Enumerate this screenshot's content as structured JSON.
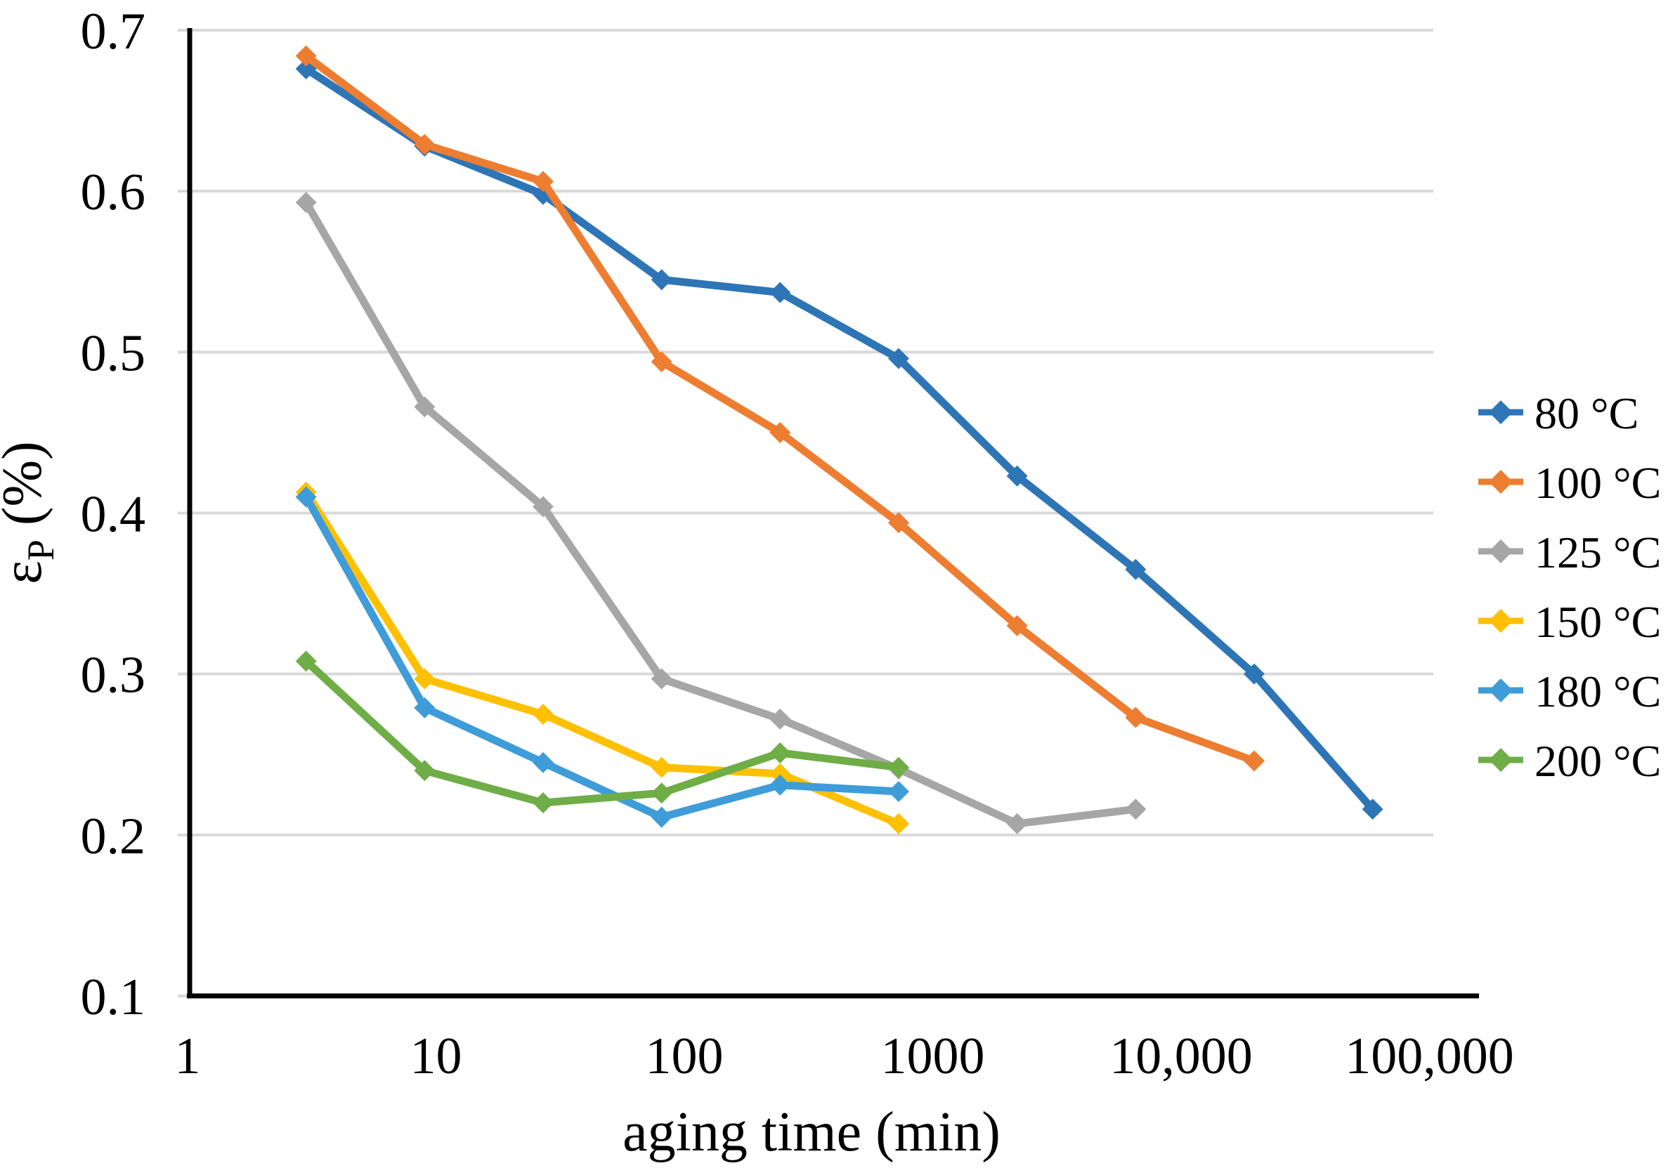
{
  "chart_data": {
    "type": "line",
    "title": "",
    "xlabel": "aging time (min)",
    "ylabel": "εP (%)",
    "ylabel_parts": {
      "symbol": "ε",
      "sub": "P",
      "rest": " (%)"
    },
    "x_scale": "log",
    "xlim": [
      1,
      100000
    ],
    "ylim": [
      0.1,
      0.7
    ],
    "grid": "horizontal",
    "legend_position": "right",
    "marker": "diamond",
    "x_ticks": [
      {
        "value": 1,
        "label": "1"
      },
      {
        "value": 10,
        "label": "10"
      },
      {
        "value": 100,
        "label": "100"
      },
      {
        "value": 1000,
        "label": "1000"
      },
      {
        "value": 10000,
        "label": "10,000"
      },
      {
        "value": 100000,
        "label": "100,000"
      }
    ],
    "y_ticks": [
      {
        "value": 0.1,
        "label": "0.1"
      },
      {
        "value": 0.2,
        "label": "0.2"
      },
      {
        "value": 0.3,
        "label": "0.3"
      },
      {
        "value": 0.4,
        "label": "0.4"
      },
      {
        "value": 0.5,
        "label": "0.5"
      },
      {
        "value": 0.6,
        "label": "0.6"
      },
      {
        "value": 0.7,
        "label": "0.7"
      }
    ],
    "series": [
      {
        "name": "80 °C",
        "color": "#2E75B6",
        "points": [
          [
            3,
            0.676
          ],
          [
            9,
            0.628
          ],
          [
            27,
            0.598
          ],
          [
            81,
            0.545
          ],
          [
            243,
            0.537
          ],
          [
            729,
            0.496
          ],
          [
            2187,
            0.423
          ],
          [
            6561,
            0.365
          ],
          [
            19683,
            0.3
          ],
          [
            59049,
            0.216
          ]
        ]
      },
      {
        "name": "100 °C",
        "color": "#ED7D31",
        "points": [
          [
            3,
            0.684
          ],
          [
            9,
            0.629
          ],
          [
            27,
            0.606
          ],
          [
            81,
            0.494
          ],
          [
            243,
            0.45
          ],
          [
            729,
            0.394
          ],
          [
            2187,
            0.33
          ],
          [
            6561,
            0.273
          ],
          [
            19683,
            0.246
          ]
        ]
      },
      {
        "name": "125 °C",
        "color": "#A6A6A6",
        "points": [
          [
            3,
            0.593
          ],
          [
            9,
            0.466
          ],
          [
            27,
            0.404
          ],
          [
            81,
            0.297
          ],
          [
            243,
            0.272
          ],
          [
            729,
            0.241
          ],
          [
            2187,
            0.207
          ],
          [
            6561,
            0.216
          ]
        ]
      },
      {
        "name": "150 °C",
        "color": "#FFC000",
        "points": [
          [
            3,
            0.413
          ],
          [
            9,
            0.297
          ],
          [
            27,
            0.275
          ],
          [
            81,
            0.242
          ],
          [
            243,
            0.238
          ],
          [
            729,
            0.207
          ]
        ]
      },
      {
        "name": "180 °C",
        "color": "#3E9CD8",
        "points": [
          [
            3,
            0.41
          ],
          [
            9,
            0.279
          ],
          [
            27,
            0.245
          ],
          [
            81,
            0.211
          ],
          [
            243,
            0.231
          ],
          [
            729,
            0.227
          ]
        ]
      },
      {
        "name": "200 °C",
        "color": "#6FAD47",
        "points": [
          [
            3,
            0.308
          ],
          [
            9,
            0.24
          ],
          [
            27,
            0.22
          ],
          [
            81,
            0.226
          ],
          [
            243,
            0.251
          ],
          [
            729,
            0.242
          ]
        ]
      }
    ]
  },
  "colors": {
    "background": "#FFFFFF",
    "gridline": "#D9D9D9",
    "axis": "#000000",
    "text": "#000000"
  }
}
